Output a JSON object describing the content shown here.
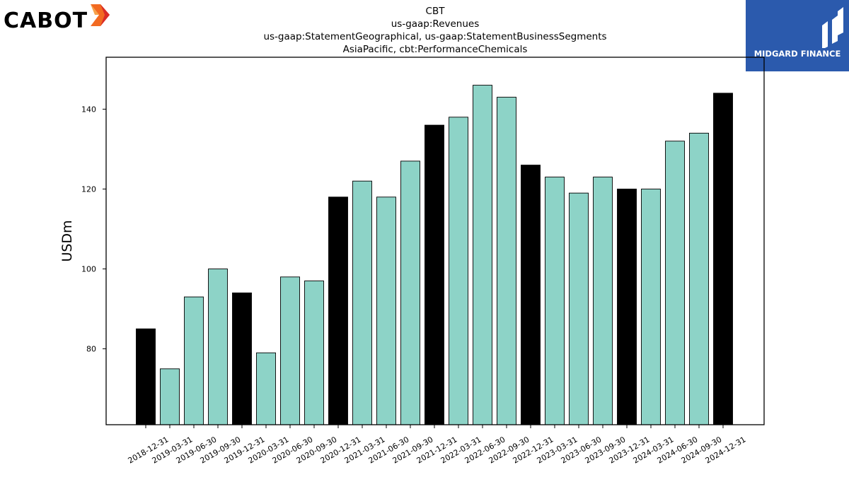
{
  "logos": {
    "left_wordmark": "CABOT",
    "right_brand": "MIDGARD FINANCE"
  },
  "colors": {
    "annual_bar": "#000000",
    "quarter_bar": "#8dd3c7",
    "bar_edge": "#000000",
    "brand_blue": "#2b5aad",
    "cabot_orange": "#f26a21",
    "cabot_red": "#d92b27"
  },
  "chart_data": {
    "type": "bar",
    "title_lines": [
      "CBT",
      "us-gaap:Revenues",
      "us-gaap:StatementGeographical, us-gaap:StatementBusinessSegments",
      "AsiaPacific, cbt:PerformanceChemicals"
    ],
    "xlabel": "",
    "ylabel": "USDm",
    "ylim": [
      61,
      153
    ],
    "yticks": [
      80,
      100,
      120,
      140
    ],
    "grid": false,
    "categories": [
      "2018-12-31",
      "2019-03-31",
      "2019-06-30",
      "2019-09-30",
      "2019-12-31",
      "2020-03-31",
      "2020-06-30",
      "2020-09-30",
      "2020-12-31",
      "2021-03-31",
      "2021-06-30",
      "2021-09-30",
      "2021-12-31",
      "2022-03-31",
      "2022-06-30",
      "2022-09-30",
      "2022-12-31",
      "2023-03-31",
      "2023-06-30",
      "2023-09-30",
      "2023-12-31",
      "2024-03-31",
      "2024-06-30",
      "2024-09-30",
      "2024-12-31"
    ],
    "values": [
      85,
      75,
      93,
      100,
      94,
      79,
      98,
      97,
      118,
      122,
      118,
      127,
      136,
      138,
      146,
      143,
      126,
      123,
      119,
      123,
      120,
      120,
      132,
      134,
      144
    ],
    "annual_flags": [
      true,
      false,
      false,
      false,
      true,
      false,
      false,
      false,
      true,
      false,
      false,
      false,
      true,
      false,
      false,
      false,
      true,
      false,
      false,
      false,
      true,
      false,
      false,
      false,
      true
    ]
  }
}
